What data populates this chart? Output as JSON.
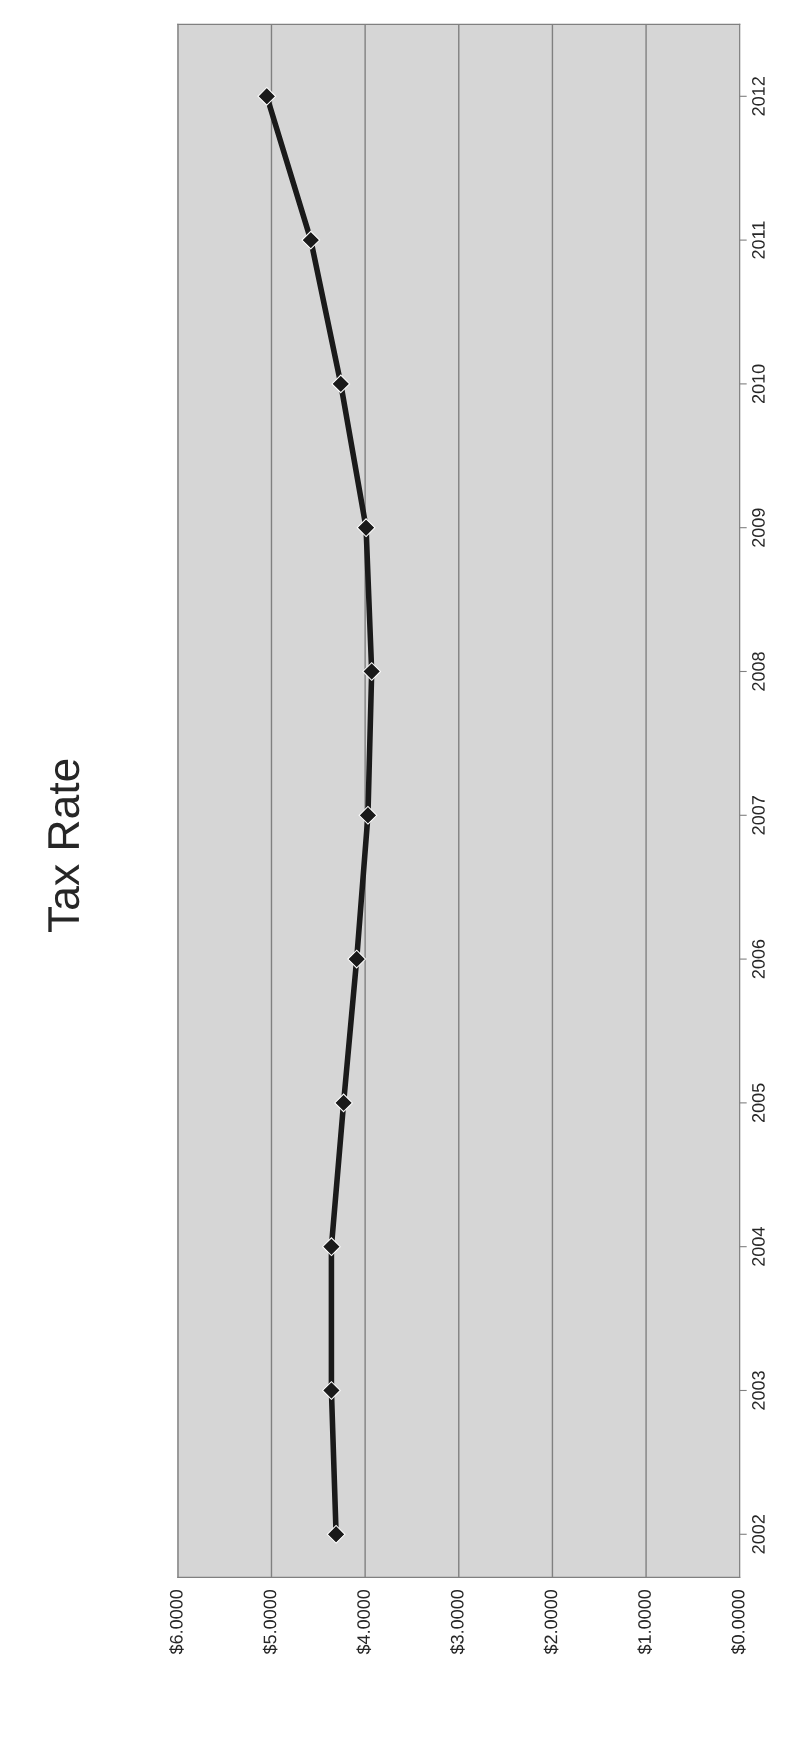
{
  "chart_data": {
    "type": "line",
    "title": "Tax Rate",
    "orientation": "horizontal",
    "categories": [
      "2012",
      "2011",
      "2010",
      "2009",
      "2008",
      "2007",
      "2006",
      "2005",
      "2004",
      "2003",
      "2002"
    ],
    "series": [
      {
        "color": "#1a1a1a",
        "values": [
          5.05,
          4.58,
          4.26,
          3.99,
          3.93,
          3.97,
          4.09,
          4.23,
          4.36,
          4.36,
          4.31
        ]
      }
    ],
    "xlim": [
      6,
      0
    ],
    "xticks": [
      {
        "value": 6,
        "label": "$6.0000"
      },
      {
        "value": 5,
        "label": "$5.0000"
      },
      {
        "value": 4,
        "label": "$4.0000"
      },
      {
        "value": 3,
        "label": "$3.0000"
      },
      {
        "value": 2,
        "label": "$2.0000"
      },
      {
        "value": 1,
        "label": "$1.0000"
      },
      {
        "value": 0,
        "label": "$0.0000"
      }
    ],
    "grid": "x",
    "marker": "diamond",
    "line_style": "solid"
  }
}
